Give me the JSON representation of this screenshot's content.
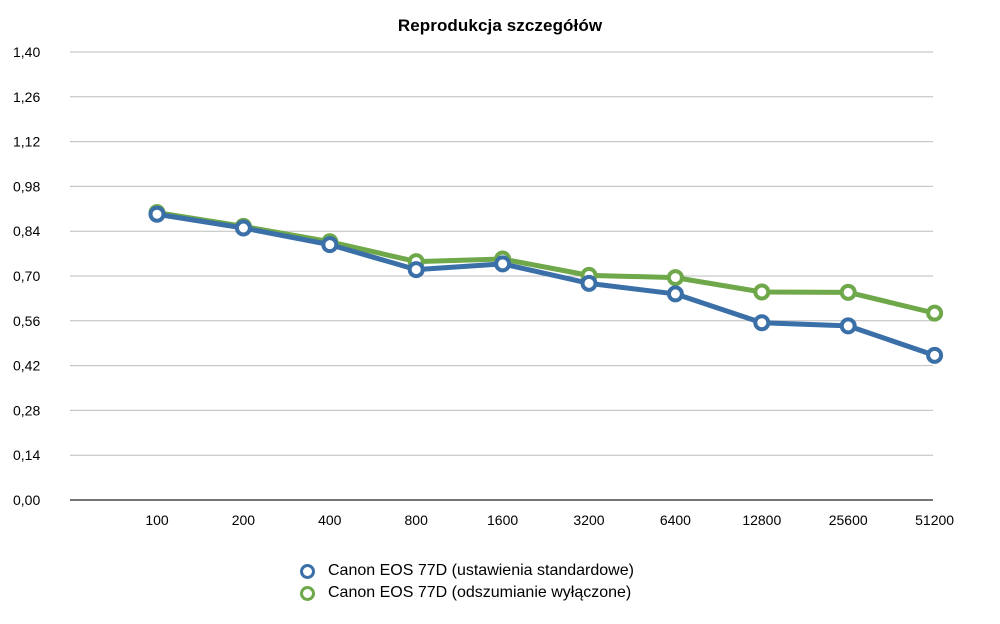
{
  "chart_data": {
    "type": "line",
    "title": "Reprodukcja szczegółów",
    "xlabel": "",
    "ylabel": "",
    "categories": [
      "100",
      "200",
      "400",
      "800",
      "1600",
      "3200",
      "6400",
      "12800",
      "25600",
      "51200"
    ],
    "yticks": [
      "0,00",
      "0,14",
      "0,28",
      "0,42",
      "0,56",
      "0,70",
      "0,84",
      "0,98",
      "1,12",
      "1,26",
      "1,40"
    ],
    "ylim": [
      0,
      1.4
    ],
    "grid": true,
    "legend_position": "bottom",
    "series": [
      {
        "name": "Canon EOS 77D (ustawienia standardowe)",
        "color": "#3a6fa8",
        "values": [
          0.893,
          0.85,
          0.798,
          0.72,
          0.738,
          0.677,
          0.644,
          0.554,
          0.544,
          0.452
        ]
      },
      {
        "name": "Canon EOS 77D (odszumianie wyłączone)",
        "color": "#6fa84a",
        "values": [
          0.898,
          0.855,
          0.807,
          0.745,
          0.753,
          0.702,
          0.695,
          0.65,
          0.649,
          0.584
        ]
      }
    ]
  }
}
